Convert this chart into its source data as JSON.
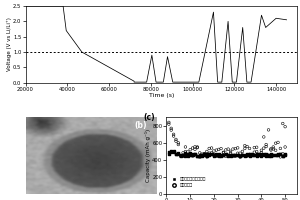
{
  "panel_a": {
    "xlabel": "Time (s)",
    "ylabel": "Voltage (V vs Li/Li⁺)",
    "xlim": [
      20000,
      150000
    ],
    "ylim": [
      0.0,
      2.5
    ],
    "yticks": [
      0.0,
      0.5,
      1.0,
      1.5,
      2.0,
      2.5
    ],
    "xticks": [
      20000,
      40000,
      60000,
      80000,
      100000,
      120000,
      140000
    ],
    "xtick_labels": [
      "20000",
      "40000",
      "60000",
      "80000",
      "100000",
      "120000",
      "140000"
    ],
    "hline_y": 1.0,
    "line_color": "#000000",
    "bg_color": "#ffffff"
  },
  "panel_c": {
    "ylabel": "Capacity (mAh g⁻¹)",
    "xlim": [
      0,
      55
    ],
    "ylim": [
      0,
      900
    ],
    "yticks": [
      0,
      200,
      400,
      600,
      800
    ],
    "legend_coated": "固体电解质膜包覆样品",
    "legend_uncoated": "未包覆样品",
    "bg_color": "#ffffff"
  }
}
